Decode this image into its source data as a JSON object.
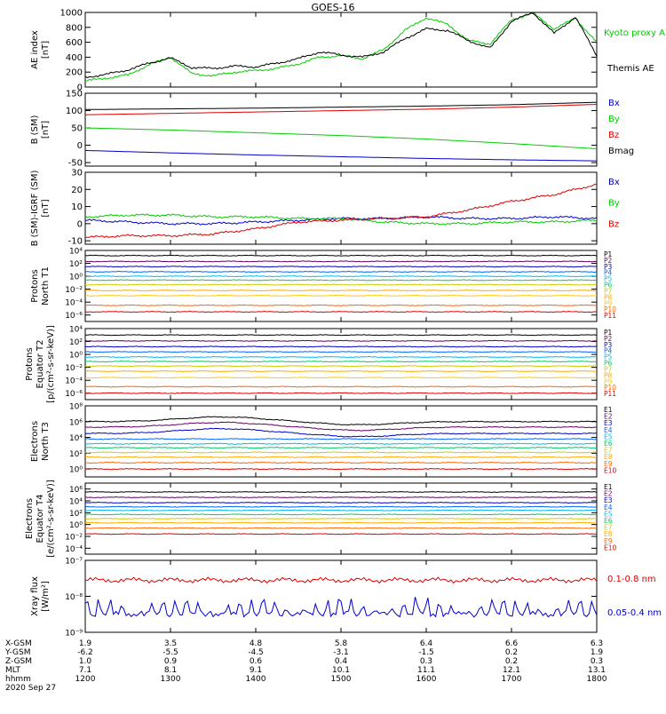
{
  "figure": {
    "title": "GOES-16",
    "date_label": "2020 Sep 27",
    "time_labels": [
      "1200",
      "1300",
      "1400",
      "1500",
      "1600",
      "1700",
      "1800"
    ],
    "ephemeris": [
      {
        "label": "X-GSM",
        "values": [
          "1.9",
          "3.5",
          "4.8",
          "5.8",
          "6.4",
          "6.6",
          "6.3"
        ]
      },
      {
        "label": "Y-GSM",
        "values": [
          "-6.2",
          "-5.5",
          "-4.5",
          "-3.1",
          "-1.5",
          "0.2",
          "1.9"
        ]
      },
      {
        "label": "Z-GSM",
        "values": [
          "1.0",
          "0.9",
          "0.6",
          "0.4",
          "0.3",
          "0.2",
          "0.3"
        ]
      },
      {
        "label": "MLT",
        "values": [
          "7.1",
          "8.1",
          "9.1",
          "10.1",
          "11.1",
          "12.1",
          "13.1"
        ]
      },
      {
        "label": "hhmm",
        "values": [
          "1200",
          "1300",
          "1400",
          "1500",
          "1600",
          "1700",
          "1800"
        ]
      }
    ]
  },
  "chart_data": [
    {
      "type": "line",
      "ylabel": [
        "AE index",
        "[nT]"
      ],
      "ylim": [
        0,
        1000
      ],
      "yscale": "linear",
      "yticks": [
        0,
        200,
        400,
        600,
        800,
        1000
      ],
      "x_hours": [
        12.0,
        12.25,
        12.5,
        12.75,
        13.0,
        13.25,
        13.5,
        13.75,
        14.0,
        14.25,
        14.5,
        14.75,
        15.0,
        15.25,
        15.5,
        15.75,
        16.0,
        16.25,
        16.5,
        16.75,
        17.0,
        17.25,
        17.5,
        17.75,
        18.0
      ],
      "series": [
        {
          "name": "Kyoto proxy AE",
          "color": "#00cc00",
          "values": [
            80,
            120,
            160,
            300,
            400,
            180,
            150,
            200,
            220,
            250,
            310,
            400,
            420,
            380,
            500,
            760,
            930,
            840,
            620,
            580,
            900,
            990,
            780,
            920,
            600
          ]
        },
        {
          "name": "Themis AE",
          "color": "#000000",
          "values": [
            130,
            170,
            230,
            320,
            390,
            260,
            250,
            280,
            270,
            320,
            380,
            470,
            430,
            400,
            470,
            650,
            780,
            760,
            620,
            520,
            880,
            1000,
            720,
            940,
            420
          ]
        }
      ]
    },
    {
      "type": "line",
      "ylabel": [
        "B (SM)",
        "[nT]"
      ],
      "ylim": [
        -60,
        150
      ],
      "yscale": "linear",
      "yticks": [
        -50,
        0,
        50,
        100,
        150
      ],
      "x_hours": [
        12.0,
        13.0,
        14.0,
        15.0,
        16.0,
        17.0,
        18.0
      ],
      "series": [
        {
          "name": "Bx",
          "color": "#0000cc",
          "values": [
            -15,
            -22,
            -28,
            -33,
            -38,
            -42,
            -45
          ]
        },
        {
          "name": "By",
          "color": "#00cc00",
          "values": [
            50,
            44,
            36,
            28,
            18,
            5,
            -10
          ]
        },
        {
          "name": "Bz",
          "color": "#dd0000",
          "values": [
            88,
            92,
            96,
            100,
            104,
            110,
            118
          ]
        },
        {
          "name": "Bmag",
          "color": "#000000",
          "values": [
            103,
            105,
            107,
            110,
            113,
            117,
            124
          ]
        }
      ]
    },
    {
      "type": "line",
      "ylabel": [
        "B (SM)-IGRF (SM)",
        "[nT]"
      ],
      "ylim": [
        -12,
        30
      ],
      "yscale": "linear",
      "yticks": [
        -10,
        0,
        10,
        20,
        30
      ],
      "x_hours": [
        12.0,
        12.5,
        13.0,
        13.5,
        14.0,
        14.5,
        15.0,
        15.5,
        16.0,
        16.5,
        17.0,
        17.5,
        18.0
      ],
      "series": [
        {
          "name": "Bx",
          "color": "#0000cc",
          "values": [
            2,
            1,
            0,
            0,
            1,
            2,
            3,
            3,
            4,
            3,
            3,
            4,
            3
          ]
        },
        {
          "name": "By",
          "color": "#00cc00",
          "values": [
            4,
            5,
            5,
            4,
            4,
            3,
            3,
            1,
            0,
            0,
            1,
            1,
            2
          ]
        },
        {
          "name": "Bz",
          "color": "#dd0000",
          "values": [
            -8,
            -7,
            -7,
            -6,
            -3,
            1,
            2,
            3,
            4,
            8,
            13,
            17,
            23
          ]
        }
      ]
    },
    {
      "type": "line",
      "ylabel": [
        "Protons",
        "North T1"
      ],
      "ylim": [
        -7,
        4
      ],
      "yscale": "log",
      "ytick_labels": [
        "10⁴",
        "10²",
        "10⁰",
        "10⁻²",
        "10⁻⁴",
        "10⁻⁶"
      ],
      "ytick_exps": [
        4,
        2,
        0,
        -2,
        -4,
        -6
      ],
      "series": [
        {
          "name": "P1",
          "color": "#000000",
          "log10_level": 3.2
        },
        {
          "name": "P2",
          "color": "#660066",
          "log10_level": 2.3
        },
        {
          "name": "P3",
          "color": "#0000cc",
          "log10_level": 1.5
        },
        {
          "name": "P4",
          "color": "#0066ff",
          "log10_level": 0.7
        },
        {
          "name": "P5",
          "color": "#00bbee",
          "log10_level": 0.0
        },
        {
          "name": "P6",
          "color": "#00cc66",
          "log10_level": -0.6
        },
        {
          "name": "P7",
          "color": "#cccc00",
          "log10_level": -1.3
        },
        {
          "name": "P8",
          "color": "#ffaa00",
          "log10_level": -2.2
        },
        {
          "name": "P9",
          "color": "#ffcc00",
          "log10_level": -3.0
        },
        {
          "name": "P10",
          "color": "#ff6600",
          "log10_level": -4.5
        },
        {
          "name": "P11",
          "color": "#dd0000",
          "log10_level": -5.5
        }
      ]
    },
    {
      "type": "line",
      "ylabel": [
        "Protons",
        "Equator T2",
        "[p/(cm²-s-sr-keV)]"
      ],
      "ylim": [
        -7,
        4
      ],
      "yscale": "log",
      "ytick_labels": [
        "10⁴",
        "10²",
        "10⁰",
        "10⁻²",
        "10⁻⁴",
        "10⁻⁶"
      ],
      "ytick_exps": [
        4,
        2,
        0,
        -2,
        -4,
        -6
      ],
      "series": [
        {
          "name": "P1",
          "color": "#000000",
          "log10_level": 3.0
        },
        {
          "name": "P2",
          "color": "#660066",
          "log10_level": 2.1
        },
        {
          "name": "P3",
          "color": "#0000cc",
          "log10_level": 1.2
        },
        {
          "name": "P4",
          "color": "#0066ff",
          "log10_level": 0.4
        },
        {
          "name": "P5",
          "color": "#00bbee",
          "log10_level": -0.4
        },
        {
          "name": "P6",
          "color": "#00cc66",
          "log10_level": -1.1
        },
        {
          "name": "P7",
          "color": "#cccc00",
          "log10_level": -1.8
        },
        {
          "name": "P8",
          "color": "#ffaa00",
          "log10_level": -2.6
        },
        {
          "name": "P9",
          "color": "#ffcc00",
          "log10_level": -3.6
        },
        {
          "name": "P10",
          "color": "#ff6600",
          "log10_level": -5.0
        },
        {
          "name": "P11",
          "color": "#dd0000",
          "log10_level": -6.0
        }
      ]
    },
    {
      "type": "line",
      "ylabel": [
        "Electrons",
        "North T3"
      ],
      "ylim": [
        -1,
        8
      ],
      "yscale": "log",
      "ytick_labels": [
        "10⁸",
        "10⁶",
        "10⁴",
        "10²",
        "10⁰"
      ],
      "ytick_exps": [
        8,
        6,
        4,
        2,
        0
      ],
      "series": [
        {
          "name": "E1",
          "color": "#000000",
          "log10_level": 6.0
        },
        {
          "name": "E2",
          "color": "#660066",
          "log10_level": 5.3
        },
        {
          "name": "E3",
          "color": "#0000cc",
          "log10_level": 4.5
        },
        {
          "name": "E4",
          "color": "#0066ff",
          "log10_level": 3.8
        },
        {
          "name": "E5",
          "color": "#00bbee",
          "log10_level": 3.2
        },
        {
          "name": "E6",
          "color": "#00cc66",
          "log10_level": 2.7
        },
        {
          "name": "E7",
          "color": "#cccc00",
          "log10_level": 2.1
        },
        {
          "name": "E8",
          "color": "#ffaa00",
          "log10_level": 1.5
        },
        {
          "name": "E9",
          "color": "#ff6600",
          "log10_level": 0.8
        },
        {
          "name": "E10",
          "color": "#dd0000",
          "log10_level": 0.0
        }
      ]
    },
    {
      "type": "line",
      "ylabel": [
        "Electrons",
        "Equator T4",
        "[e/(cm²-s-sr-keV)]"
      ],
      "ylim": [
        -5,
        7
      ],
      "yscale": "log",
      "ytick_labels": [
        "10⁶",
        "10⁴",
        "10²",
        "10⁰",
        "10⁻²",
        "10⁻⁴"
      ],
      "ytick_exps": [
        6,
        4,
        2,
        0,
        -2,
        -4
      ],
      "series": [
        {
          "name": "E1",
          "color": "#000000",
          "log10_level": 5.5
        },
        {
          "name": "E2",
          "color": "#660066",
          "log10_level": 4.6
        },
        {
          "name": "E3",
          "color": "#0000cc",
          "log10_level": 3.7
        },
        {
          "name": "E4",
          "color": "#0066ff",
          "log10_level": 3.0
        },
        {
          "name": "E5",
          "color": "#00bbee",
          "log10_level": 2.4
        },
        {
          "name": "E6",
          "color": "#00cc66",
          "log10_level": 1.7
        },
        {
          "name": "E7",
          "color": "#cccc00",
          "log10_level": 1.0
        },
        {
          "name": "E8",
          "color": "#ffaa00",
          "log10_level": 0.3
        },
        {
          "name": "E9",
          "color": "#ff6600",
          "log10_level": -0.6
        },
        {
          "name": "E10",
          "color": "#dd0000",
          "log10_level": -1.6
        }
      ]
    },
    {
      "type": "line",
      "ylabel": [
        "Xray flux",
        "[W/m²]"
      ],
      "ylim": [
        -9,
        -7
      ],
      "yscale": "log",
      "ytick_labels": [
        "10⁻⁷",
        "10⁻⁸",
        "10⁻⁹"
      ],
      "ytick_exps": [
        -7,
        -8,
        -9
      ],
      "series": [
        {
          "name": "0.1-0.8 nm",
          "color": "#dd0000",
          "log10_level": -7.55
        },
        {
          "name": "0.05-0.4 nm",
          "color": "#0000cc",
          "log10_level": -8.5
        }
      ]
    }
  ]
}
